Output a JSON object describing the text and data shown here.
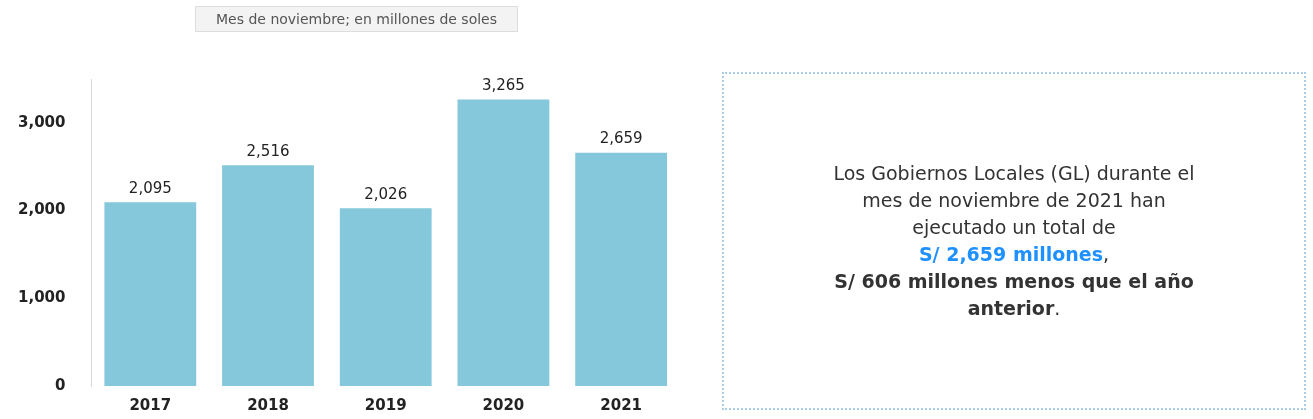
{
  "chart_data": [
    {
      "type": "bar",
      "title": "Mes de noviembre; en millones de soles",
      "categories": [
        "2017",
        "2018",
        "2019",
        "2020",
        "2021"
      ],
      "values": [
        2095,
        2516,
        2026,
        3265,
        2659
      ],
      "value_labels": [
        "2,095",
        "2,516",
        "2,026",
        "3,265",
        "2,659"
      ],
      "color": "#85c8dc",
      "ylim": [
        0,
        3500
      ],
      "yticks": [
        0,
        {
          "value": 1000,
          "label": "1,000"
        },
        {
          "value": 2000,
          "label": "2,000"
        },
        {
          "value": 3000,
          "label": "3,000"
        }
      ],
      "grid": false,
      "legend": false
    },
    {
      "type": "other",
      "annotations": [
        "Los Gobiernos Locales (GL) durante el mes de noviembre de 2021 han ejecutado un total de",
        "S/ 2,659 millones",
        ",",
        "S/ 606 millones menos que el año anterior",
        "."
      ]
    }
  ]
}
